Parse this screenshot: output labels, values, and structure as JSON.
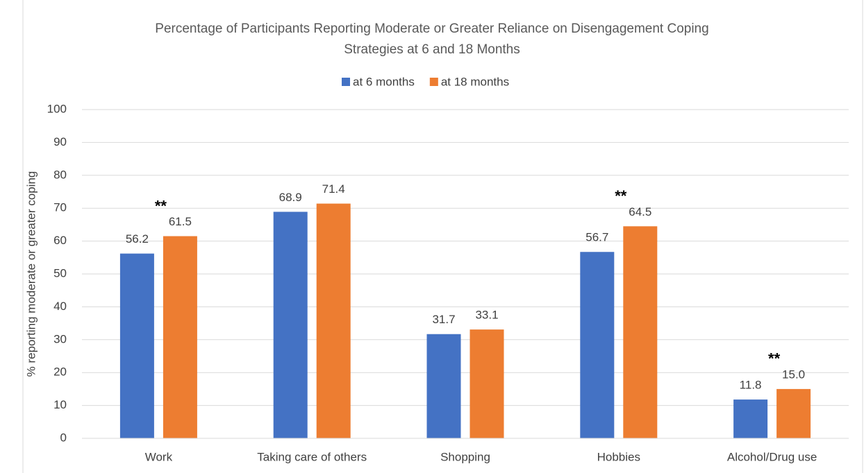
{
  "chart_data": {
    "type": "bar",
    "title": [
      "Percentage of Participants Reporting Moderate or Greater Reliance on Disengagement Coping",
      "Strategies at 6 and 18 Months"
    ],
    "y_label": "% reporting moderate or greater coping",
    "categories": [
      "Work",
      "Taking care of others",
      "Shopping",
      "Hobbies",
      "Alcohol/Drug use"
    ],
    "series": [
      {
        "name": "at 6 months",
        "color": "#4472c4",
        "values": [
          56.2,
          68.9,
          31.7,
          56.7,
          11.8
        ]
      },
      {
        "name": "at 18 months",
        "color": "#ed7d31",
        "values": [
          61.5,
          71.4,
          33.1,
          64.5,
          15
        ],
        "value_labels": [
          "61.5",
          "71.4",
          "33.1",
          "64.5",
          "15.0"
        ]
      }
    ],
    "annotations": [
      {
        "text": "**",
        "category": "Work"
      },
      {
        "text": "**",
        "category": "Hobbies"
      },
      {
        "text": "**",
        "category": "Alcohol/Drug use"
      }
    ],
    "ylim": [
      0,
      100
    ],
    "yticks": [
      0,
      10,
      20,
      30,
      40,
      50,
      60,
      70,
      80,
      90,
      100
    ],
    "grid": true,
    "legend": "top"
  }
}
